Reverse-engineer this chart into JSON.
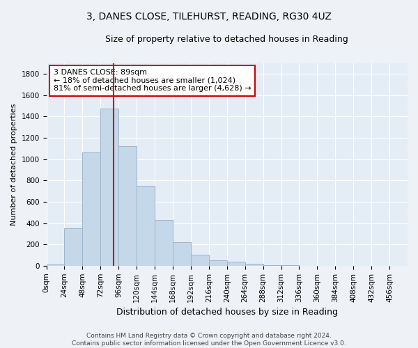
{
  "title": "3, DANES CLOSE, TILEHURST, READING, RG30 4UZ",
  "subtitle": "Size of property relative to detached houses in Reading",
  "xlabel": "Distribution of detached houses by size in Reading",
  "ylabel": "Number of detached properties",
  "bar_values": [
    10,
    350,
    1060,
    1470,
    1120,
    750,
    430,
    220,
    105,
    50,
    35,
    18,
    8,
    3,
    1,
    0,
    0,
    0,
    0,
    0
  ],
  "bin_edges": [
    0,
    24,
    48,
    72,
    96,
    120,
    144,
    168,
    192,
    216,
    240,
    264,
    288,
    312,
    336,
    360,
    384,
    408,
    432,
    456,
    480
  ],
  "property_size": 89,
  "annotation_text": "3 DANES CLOSE: 89sqm\n← 18% of detached houses are smaller (1,024)\n81% of semi-detached houses are larger (4,628) →",
  "bar_fill_color": "#c5d8ea",
  "bar_edge_color": "#9ab5cc",
  "vline_color": "#cc0000",
  "annotation_box_edge": "#cc0000",
  "annotation_box_fill": "#ffffff",
  "footer_text": "Contains HM Land Registry data © Crown copyright and database right 2024.\nContains public sector information licensed under the Open Government Licence v3.0.",
  "ylim": [
    0,
    1900
  ],
  "yticks": [
    0,
    200,
    400,
    600,
    800,
    1000,
    1200,
    1400,
    1600,
    1800
  ],
  "background_color": "#eef2f7",
  "axes_background_color": "#e4ecf5",
  "title_fontsize": 10,
  "subtitle_fontsize": 9,
  "ylabel_fontsize": 8,
  "xlabel_fontsize": 9,
  "annotation_fontsize": 8,
  "tick_fontsize": 7.5
}
